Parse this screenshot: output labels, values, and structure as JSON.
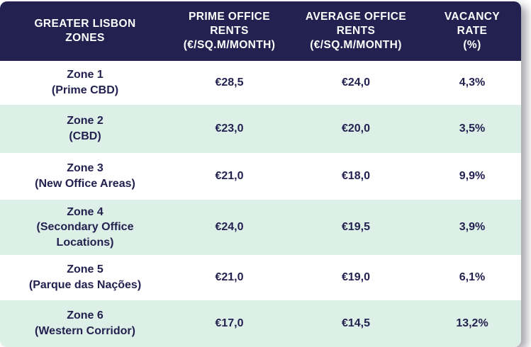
{
  "colors": {
    "header_bg": "#232150",
    "body_text": "#232150",
    "alt_row_bg": "#ddf0e7",
    "row_bg": "#ffffff"
  },
  "header": {
    "zones": "GREATER LISBON\nZONES",
    "prime": "PRIME OFFICE\nRENTS\n(€/SQ.M/MONTH)",
    "average": "AVERAGE OFFICE\nRENTS\n(€/SQ.M/MONTH)",
    "vacancy": "VACANCY\nRATE\n(%)"
  },
  "rows": [
    {
      "zone": "Zone 1\n(Prime CBD)",
      "prime": "€28,5",
      "average": "€24,0",
      "vacancy": "4,3%"
    },
    {
      "zone": "Zone 2\n(CBD)",
      "prime": "€23,0",
      "average": "€20,0",
      "vacancy": "3,5%"
    },
    {
      "zone": "Zone 3\n(New Office Areas)",
      "prime": "€21,0",
      "average": "€18,0",
      "vacancy": "9,9%"
    },
    {
      "zone": "Zone 4\n(Secondary Office\nLocations)",
      "prime": "€24,0",
      "average": "€19,5",
      "vacancy": "3,9%"
    },
    {
      "zone": "Zone 5\n(Parque das Nações)",
      "prime": "€21,0",
      "average": "€19,0",
      "vacancy": "6,1%"
    },
    {
      "zone": "Zone 6\n(Western Corridor)",
      "prime": "€17,0",
      "average": "€14,5",
      "vacancy": "13,2%"
    }
  ],
  "chart_data": {
    "type": "table",
    "title": "Greater Lisbon Zones office market",
    "columns": [
      "GREATER LISBON ZONES",
      "PRIME OFFICE RENTS (€/SQ.M/MONTH)",
      "AVERAGE OFFICE RENTS (€/SQ.M/MONTH)",
      "VACANCY RATE (%)"
    ],
    "rows": [
      [
        "Zone 1 (Prime CBD)",
        "€28,5",
        "€24,0",
        "4,3%"
      ],
      [
        "Zone 2 (CBD)",
        "€23,0",
        "€20,0",
        "3,5%"
      ],
      [
        "Zone 3 (New Office Areas)",
        "€21,0",
        "€18,0",
        "9,9%"
      ],
      [
        "Zone 4 (Secondary Office Locations)",
        "€24,0",
        "€19,5",
        "3,9%"
      ],
      [
        "Zone 5 (Parque das Nações)",
        "€21,0",
        "€19,0",
        "6,1%"
      ],
      [
        "Zone 6 (Western Corridor)",
        "€17,0",
        "€14,5",
        "13,2%"
      ]
    ],
    "prime_rents_numeric": [
      28.5,
      23.0,
      21.0,
      24.0,
      21.0,
      17.0
    ],
    "average_rents_numeric": [
      24.0,
      20.0,
      18.0,
      19.5,
      19.0,
      14.5
    ],
    "vacancy_rate_numeric": [
      4.3,
      3.5,
      9.9,
      3.9,
      6.1,
      13.2
    ]
  }
}
